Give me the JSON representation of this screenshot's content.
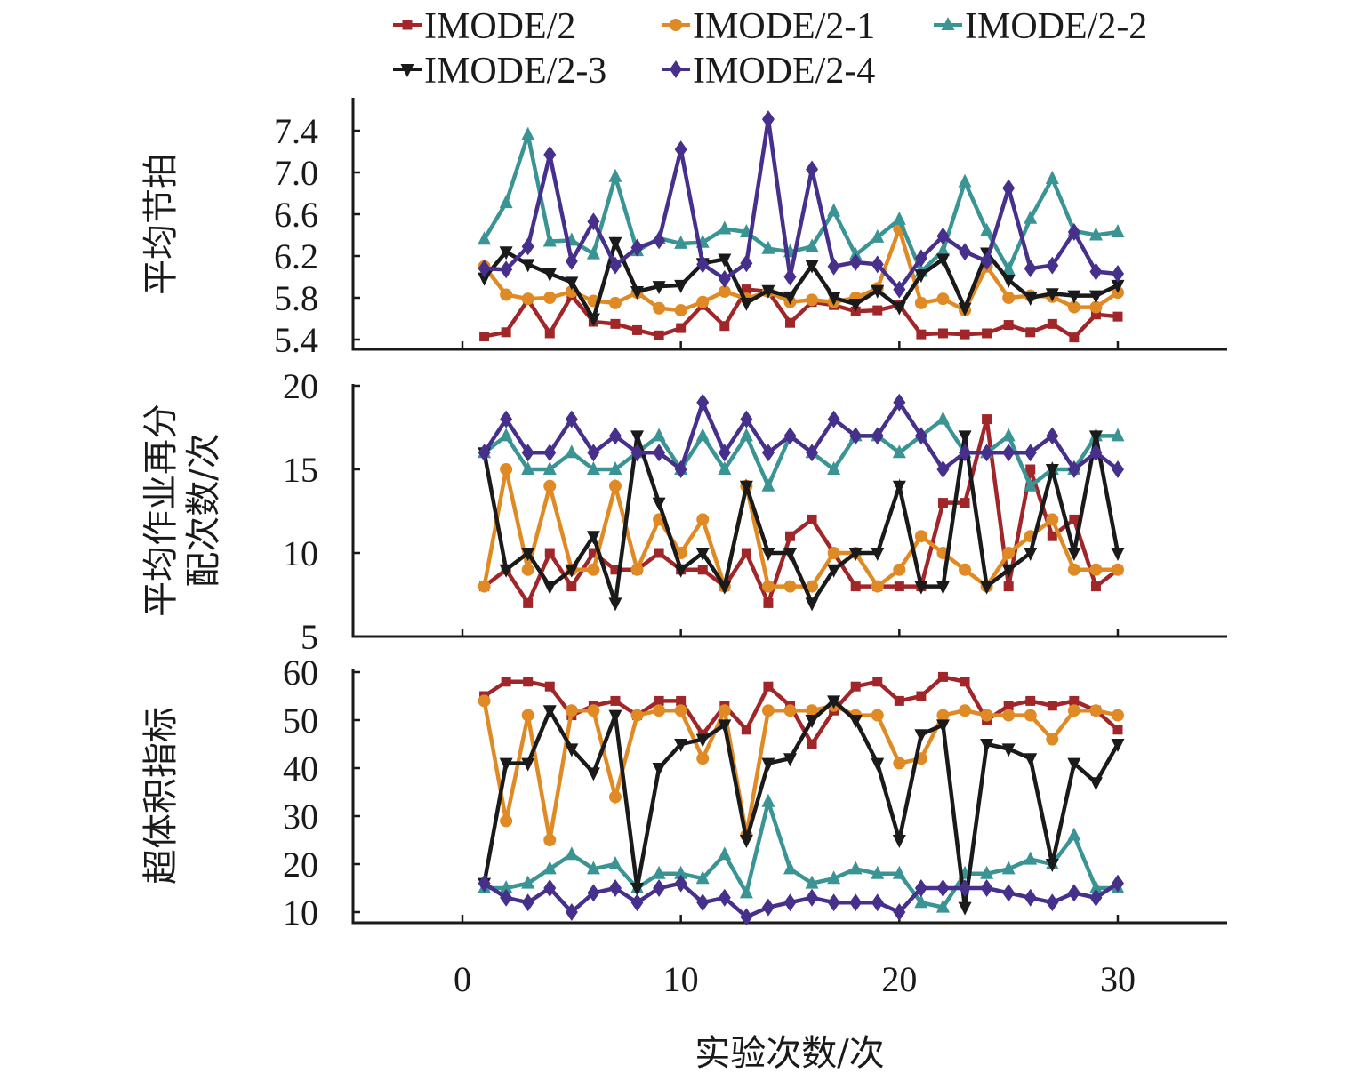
{
  "chart_data": {
    "type": "line",
    "xlabel": "实验次数/次",
    "x_ticks": [
      0,
      10,
      20,
      30
    ],
    "xlim": [
      -5,
      35
    ],
    "x": [
      1,
      2,
      3,
      4,
      5,
      6,
      7,
      8,
      9,
      10,
      11,
      12,
      13,
      14,
      15,
      16,
      17,
      18,
      19,
      20,
      21,
      22,
      23,
      24,
      25,
      26,
      27,
      28,
      29,
      30
    ],
    "legend": {
      "placement": "top",
      "entries": [
        {
          "name": "IMODE/2",
          "color": "#a0262a",
          "marker": "square"
        },
        {
          "name": "IMODE/2-1",
          "color": "#e08a25",
          "marker": "circle"
        },
        {
          "name": "IMODE/2-2",
          "color": "#3a9494",
          "marker": "triangle-up"
        },
        {
          "name": "IMODE/2-3",
          "color": "#1a1a1a",
          "marker": "triangle-down"
        },
        {
          "name": "IMODE/2-4",
          "color": "#46308c",
          "marker": "diamond"
        }
      ]
    },
    "panels": [
      {
        "ylabel": "平均节拍",
        "ylim": [
          5.3,
          7.7
        ],
        "y_ticks": [
          "5.4",
          "5.8",
          "6.2",
          "6.6",
          "7.0",
          "7.4"
        ],
        "series": [
          {
            "name": "IMODE/2",
            "values": [
              5.43,
              5.47,
              5.78,
              5.46,
              5.82,
              5.57,
              5.55,
              5.49,
              5.44,
              5.51,
              5.73,
              5.53,
              5.88,
              5.86,
              5.56,
              5.76,
              5.73,
              5.67,
              5.68,
              5.73,
              5.45,
              5.46,
              5.45,
              5.46,
              5.54,
              5.47,
              5.55,
              5.42,
              5.64,
              5.62
            ]
          },
          {
            "name": "IMODE/2-1",
            "values": [
              6.1,
              5.83,
              5.79,
              5.8,
              5.86,
              5.77,
              5.75,
              5.85,
              5.7,
              5.68,
              5.76,
              5.86,
              5.79,
              5.86,
              5.76,
              5.78,
              5.76,
              5.8,
              5.89,
              6.46,
              5.75,
              5.79,
              5.68,
              6.1,
              5.8,
              5.82,
              5.81,
              5.71,
              5.71,
              5.85
            ]
          },
          {
            "name": "IMODE/2-2",
            "values": [
              6.36,
              6.71,
              7.36,
              6.34,
              6.35,
              6.22,
              6.96,
              6.25,
              6.37,
              6.32,
              6.33,
              6.46,
              6.43,
              6.27,
              6.24,
              6.29,
              6.63,
              6.21,
              6.38,
              6.55,
              6.05,
              6.25,
              6.91,
              6.44,
              6.07,
              6.56,
              6.94,
              6.44,
              6.4,
              6.43
            ]
          },
          {
            "name": "IMODE/2-3",
            "values": [
              5.99,
              6.24,
              6.12,
              6.03,
              5.95,
              5.6,
              6.33,
              5.86,
              5.91,
              5.92,
              6.13,
              6.17,
              5.75,
              5.87,
              5.81,
              6.11,
              5.8,
              5.74,
              5.87,
              5.71,
              6.02,
              6.17,
              5.7,
              6.23,
              5.97,
              5.8,
              5.84,
              5.82,
              5.82,
              5.92
            ]
          },
          {
            "name": "IMODE/2-4",
            "values": [
              6.08,
              6.07,
              6.29,
              7.17,
              6.15,
              6.53,
              6.11,
              6.28,
              6.35,
              7.22,
              6.12,
              5.98,
              6.13,
              7.51,
              6.0,
              7.03,
              6.1,
              6.14,
              6.12,
              5.88,
              6.18,
              6.39,
              6.24,
              6.15,
              6.85,
              6.08,
              6.11,
              6.43,
              6.05,
              6.03
            ]
          }
        ]
      },
      {
        "ylabel": "平均作业再分配次数/次",
        "ylim": [
          5,
          21
        ],
        "y_ticks": [
          "5",
          "10",
          "15",
          "20"
        ],
        "series": [
          {
            "name": "IMODE/2",
            "values": [
              8,
              9,
              7,
              10,
              8,
              10,
              9,
              9,
              10,
              9,
              9,
              8,
              10,
              7,
              11,
              12,
              10,
              8,
              8,
              8,
              8,
              13,
              13,
              18,
              8,
              15,
              11,
              12,
              8,
              9
            ]
          },
          {
            "name": "IMODE/2-1",
            "values": [
              8,
              15,
              9,
              14,
              9,
              9,
              14,
              9,
              12,
              10,
              12,
              8,
              14,
              8,
              8,
              8,
              10,
              10,
              8,
              9,
              11,
              10,
              9,
              8,
              10,
              11,
              12,
              9,
              9,
              9
            ]
          },
          {
            "name": "IMODE/2-2",
            "values": [
              16,
              17,
              15,
              15,
              16,
              15,
              15,
              16,
              17,
              15,
              17,
              15,
              17,
              14,
              17,
              16,
              15,
              17,
              17,
              16,
              17,
              18,
              16,
              16,
              17,
              14,
              15,
              15,
              17,
              17
            ]
          },
          {
            "name": "IMODE/2-3",
            "values": [
              16,
              9,
              10,
              8,
              9,
              11,
              7,
              17,
              13,
              9,
              10,
              8,
              14,
              10,
              10,
              7,
              9,
              10,
              10,
              14,
              8,
              8,
              17,
              8,
              9,
              10,
              15,
              10,
              17,
              10
            ]
          },
          {
            "name": "IMODE/2-4",
            "values": [
              16,
              18,
              16,
              16,
              18,
              16,
              17,
              16,
              16,
              15,
              19,
              16,
              18,
              16,
              17,
              16,
              18,
              17,
              17,
              19,
              17,
              15,
              16,
              16,
              16,
              16,
              17,
              15,
              16,
              15
            ]
          }
        ]
      },
      {
        "ylabel": "超体积指标",
        "ylim": [
          8,
          61
        ],
        "y_ticks": [
          "10",
          "20",
          "30",
          "40",
          "50",
          "60"
        ],
        "series": [
          {
            "name": "IMODE/2",
            "values": [
              55,
              58,
              58,
              57,
              51,
              53,
              54,
              51,
              54,
              54,
              47,
              53,
              48,
              57,
              53,
              45,
              52,
              57,
              58,
              54,
              55,
              59,
              58,
              50,
              53,
              54,
              53,
              54,
              52,
              48
            ]
          },
          {
            "name": "IMODE/2-1",
            "values": [
              54,
              29,
              51,
              25,
              52,
              52,
              34,
              51,
              52,
              52,
              42,
              52,
              26,
              52,
              52,
              52,
              53,
              51,
              51,
              41,
              42,
              51,
              52,
              51,
              51,
              51,
              46,
              52,
              52,
              51
            ]
          },
          {
            "name": "IMODE/2-2",
            "values": [
              15,
              15,
              16,
              19,
              22,
              19,
              20,
              15,
              18,
              18,
              17,
              22,
              14,
              33,
              19,
              16,
              17,
              19,
              18,
              18,
              12,
              11,
              18,
              18,
              19,
              21,
              20,
              26,
              15,
              15
            ]
          },
          {
            "name": "IMODE/2-3",
            "values": [
              16,
              41,
              41,
              52,
              44,
              39,
              51,
              15,
              40,
              45,
              46,
              49,
              25,
              41,
              42,
              50,
              54,
              50,
              41,
              25,
              47,
              49,
              11,
              45,
              44,
              42,
              20,
              41,
              37,
              45
            ]
          },
          {
            "name": "IMODE/2-4",
            "values": [
              16,
              13,
              12,
              15,
              10,
              14,
              15,
              12,
              15,
              16,
              12,
              13,
              9,
              11,
              12,
              13,
              12,
              12,
              12,
              10,
              15,
              15,
              15,
              15,
              14,
              13,
              12,
              14,
              13,
              16
            ]
          }
        ]
      }
    ]
  }
}
